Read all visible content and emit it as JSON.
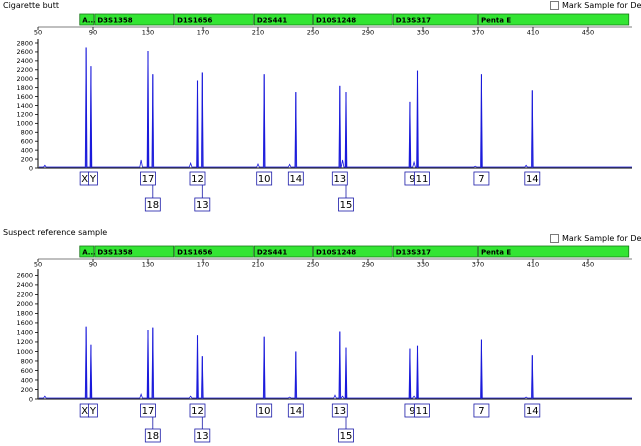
{
  "panels": [
    {
      "title": "Cigarette butt",
      "mark_label": "Mark Sample for Deletion",
      "loci": [
        {
          "label": "A...",
          "start": 80,
          "end": 91
        },
        {
          "label": "D3S1358",
          "start": 91,
          "end": 149
        },
        {
          "label": "D1S1656",
          "start": 149,
          "end": 207
        },
        {
          "label": "D2S441",
          "start": 207,
          "end": 250
        },
        {
          "label": "D10S1248",
          "start": 250,
          "end": 308
        },
        {
          "label": "D13S317",
          "start": 308,
          "end": 370
        },
        {
          "label": "Penta E",
          "start": 370,
          "end": 480
        }
      ],
      "x_ticks": [
        50,
        90,
        130,
        170,
        210,
        250,
        290,
        330,
        370,
        410,
        450
      ],
      "y_ticks": [
        0,
        200,
        400,
        600,
        800,
        1000,
        1200,
        1400,
        1600,
        1800,
        2000,
        2200,
        2400,
        2600,
        2800
      ],
      "y_max": 2800,
      "peaks": [
        {
          "x": 85,
          "h": 2700
        },
        {
          "x": 88.5,
          "h": 2280
        },
        {
          "x": 130,
          "h": 2620
        },
        {
          "x": 133.5,
          "h": 2100
        },
        {
          "x": 166,
          "h": 1960
        },
        {
          "x": 169.5,
          "h": 2140
        },
        {
          "x": 214.5,
          "h": 2100
        },
        {
          "x": 237.5,
          "h": 1700
        },
        {
          "x": 269.5,
          "h": 1840
        },
        {
          "x": 274,
          "h": 1700
        },
        {
          "x": 320.5,
          "h": 1480
        },
        {
          "x": 326,
          "h": 2180
        },
        {
          "x": 372.5,
          "h": 2100
        },
        {
          "x": 409.5,
          "h": 1740
        }
      ],
      "small_peaks": [
        {
          "x": 55,
          "h": 60
        },
        {
          "x": 125,
          "h": 180
        },
        {
          "x": 161,
          "h": 110
        },
        {
          "x": 210,
          "h": 90
        },
        {
          "x": 233,
          "h": 80
        },
        {
          "x": 271.5,
          "h": 180
        },
        {
          "x": 323.5,
          "h": 130
        },
        {
          "x": 368,
          "h": 40
        },
        {
          "x": 405,
          "h": 60
        }
      ],
      "alleles": [
        {
          "x": 85,
          "label": "X",
          "row": 1
        },
        {
          "x": 88.5,
          "label": "Y",
          "row": 1
        },
        {
          "x": 130,
          "label": "17",
          "row": 1
        },
        {
          "x": 133.5,
          "label": "18",
          "row": 2
        },
        {
          "x": 166,
          "label": "12",
          "row": 1
        },
        {
          "x": 169.5,
          "label": "13",
          "row": 2
        },
        {
          "x": 214.5,
          "label": "10",
          "row": 1
        },
        {
          "x": 237.5,
          "label": "14",
          "row": 1
        },
        {
          "x": 269.5,
          "label": "13",
          "row": 1
        },
        {
          "x": 274,
          "label": "15",
          "row": 2
        },
        {
          "x": 320.5,
          "label": "9",
          "row": 1
        },
        {
          "x": 326,
          "label": "11",
          "row": 1
        },
        {
          "x": 372.5,
          "label": "7",
          "row": 1
        },
        {
          "x": 409.5,
          "label": "14",
          "row": 1
        }
      ]
    },
    {
      "title": "Suspect reference sample",
      "mark_label": "Mark Sample for Deletion",
      "loci": [
        {
          "label": "A...",
          "start": 80,
          "end": 91
        },
        {
          "label": "D3S1358",
          "start": 91,
          "end": 149
        },
        {
          "label": "D1S1656",
          "start": 149,
          "end": 207
        },
        {
          "label": "D2S441",
          "start": 207,
          "end": 250
        },
        {
          "label": "D10S1248",
          "start": 250,
          "end": 308
        },
        {
          "label": "D13S317",
          "start": 308,
          "end": 370
        },
        {
          "label": "Penta E",
          "start": 370,
          "end": 480
        }
      ],
      "x_ticks": [
        50,
        90,
        130,
        170,
        210,
        250,
        290,
        330,
        370,
        410,
        450
      ],
      "y_ticks": [
        0,
        200,
        400,
        600,
        800,
        1000,
        1200,
        1400,
        1600,
        1800,
        2000,
        2200,
        2400,
        2600
      ],
      "y_max": 2650,
      "peaks": [
        {
          "x": 85,
          "h": 1520
        },
        {
          "x": 88.5,
          "h": 1140
        },
        {
          "x": 130,
          "h": 1450
        },
        {
          "x": 133.5,
          "h": 1500
        },
        {
          "x": 166,
          "h": 1340
        },
        {
          "x": 169.5,
          "h": 900
        },
        {
          "x": 214.5,
          "h": 1310
        },
        {
          "x": 237.5,
          "h": 1000
        },
        {
          "x": 269.5,
          "h": 1420
        },
        {
          "x": 274,
          "h": 1080
        },
        {
          "x": 320.5,
          "h": 1060
        },
        {
          "x": 326,
          "h": 1120
        },
        {
          "x": 372.5,
          "h": 1250
        },
        {
          "x": 409.5,
          "h": 920
        }
      ],
      "small_peaks": [
        {
          "x": 55,
          "h": 60
        },
        {
          "x": 125,
          "h": 100
        },
        {
          "x": 161,
          "h": 60
        },
        {
          "x": 233,
          "h": 40
        },
        {
          "x": 266,
          "h": 80
        },
        {
          "x": 271.5,
          "h": 60
        },
        {
          "x": 323.5,
          "h": 60
        },
        {
          "x": 405,
          "h": 40
        }
      ],
      "alleles": [
        {
          "x": 85,
          "label": "X",
          "row": 1
        },
        {
          "x": 88.5,
          "label": "Y",
          "row": 1
        },
        {
          "x": 130,
          "label": "17",
          "row": 1
        },
        {
          "x": 133.5,
          "label": "18",
          "row": 2
        },
        {
          "x": 166,
          "label": "12",
          "row": 1
        },
        {
          "x": 169.5,
          "label": "13",
          "row": 2
        },
        {
          "x": 214.5,
          "label": "10",
          "row": 1
        },
        {
          "x": 237.5,
          "label": "14",
          "row": 1
        },
        {
          "x": 269.5,
          "label": "13",
          "row": 1
        },
        {
          "x": 274,
          "label": "15",
          "row": 2
        },
        {
          "x": 320.5,
          "label": "9",
          "row": 1
        },
        {
          "x": 326,
          "label": "11",
          "row": 1
        },
        {
          "x": 372.5,
          "label": "7",
          "row": 1
        },
        {
          "x": 409.5,
          "label": "14",
          "row": 1
        }
      ]
    }
  ],
  "colors": {
    "trace": "#1a1adb",
    "bin": "#33e533",
    "bin_border": "#1a7a1a",
    "allele_box": "#1a1aa8"
  },
  "chart_data": [
    {
      "type": "line",
      "title": "Cigarette butt",
      "x": [
        85,
        88.5,
        130,
        133.5,
        166,
        169.5,
        214.5,
        237.5,
        269.5,
        274,
        320.5,
        326,
        372.5,
        409.5
      ],
      "series": [
        {
          "values": [
            2700,
            2280,
            2620,
            2100,
            1960,
            2140,
            2100,
            1700,
            1840,
            1700,
            1480,
            2180,
            2100,
            1740
          ]
        }
      ],
      "xlim": [
        50,
        485
      ],
      "ylim": [
        0,
        2800
      ]
    },
    {
      "type": "line",
      "title": "Suspect reference sample",
      "x": [
        85,
        88.5,
        130,
        133.5,
        166,
        169.5,
        214.5,
        237.5,
        269.5,
        274,
        320.5,
        326,
        372.5,
        409.5
      ],
      "series": [
        {
          "values": [
            1520,
            1140,
            1450,
            1500,
            1340,
            900,
            1310,
            1000,
            1420,
            1080,
            1060,
            1120,
            1250,
            920
          ]
        }
      ],
      "xlim": [
        50,
        485
      ],
      "ylim": [
        0,
        2650
      ]
    }
  ]
}
